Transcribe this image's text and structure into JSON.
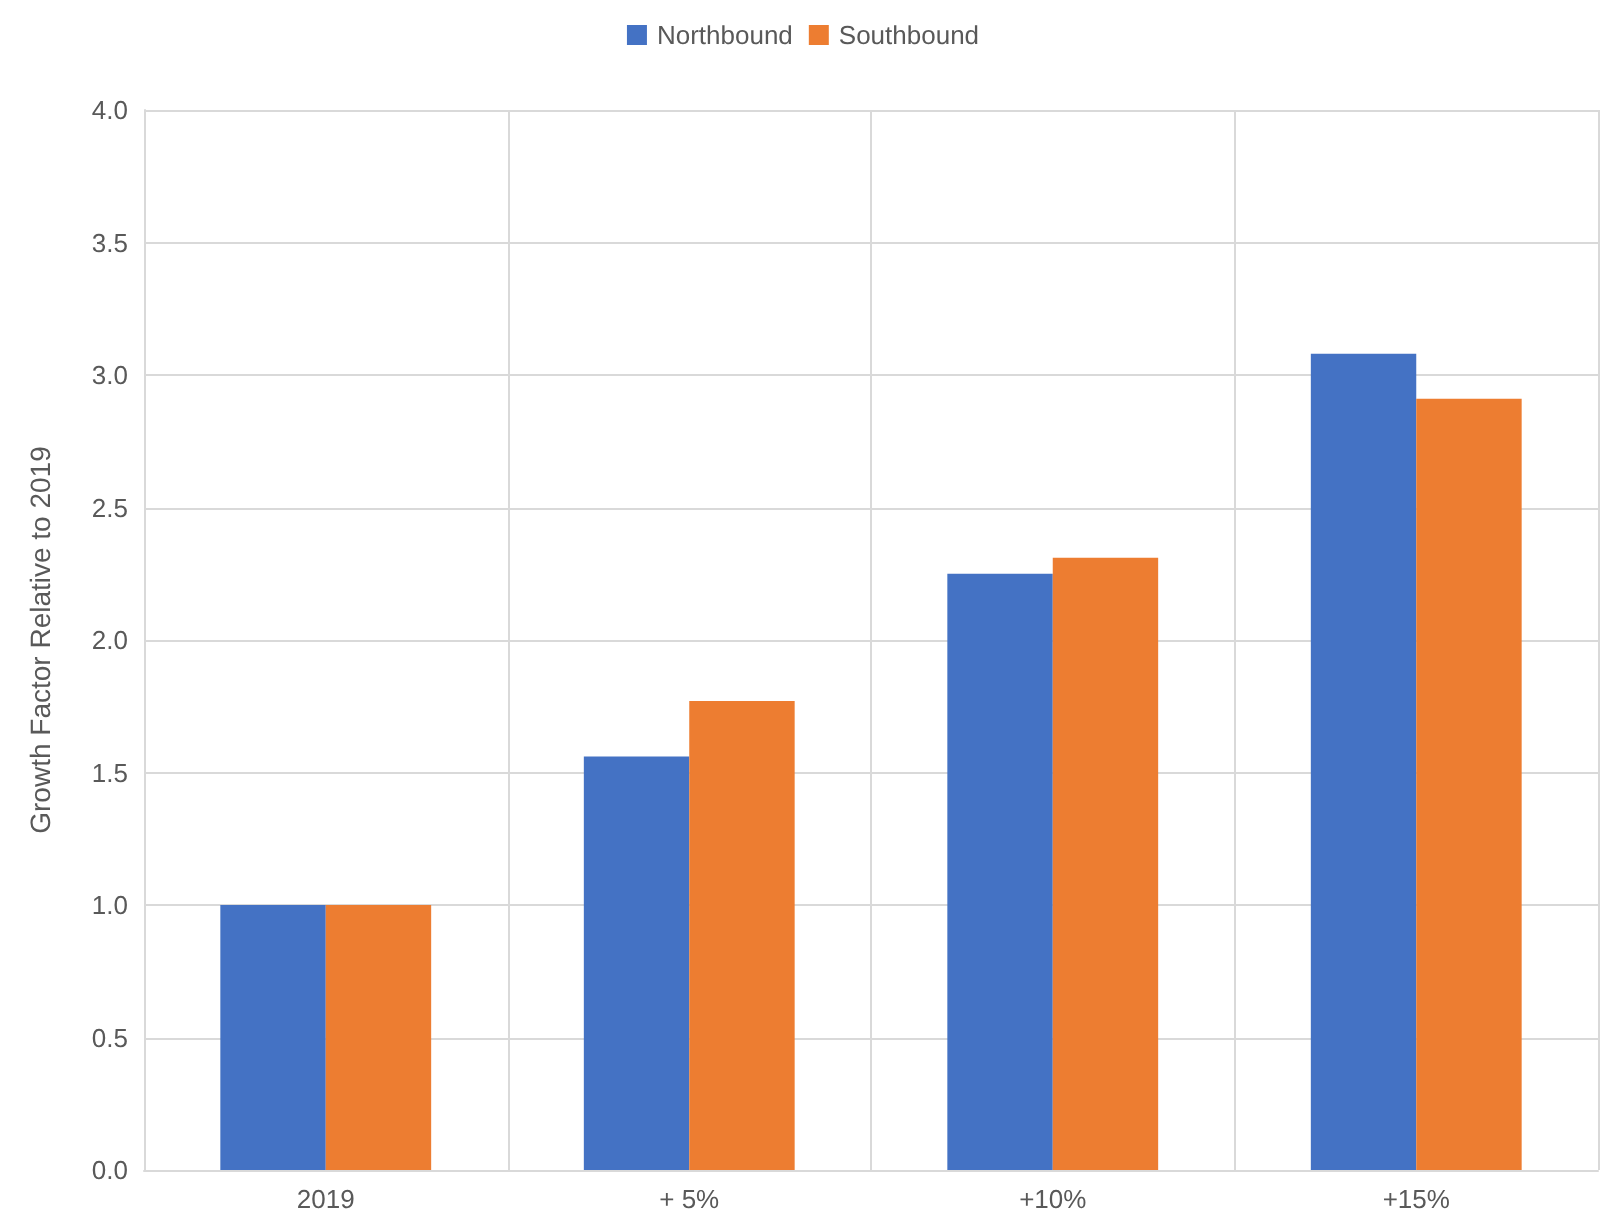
{
  "chart_data": {
    "type": "bar",
    "ylabel": "Growth Factor Relative to 2019",
    "categories": [
      "2019",
      "+ 5%",
      "+10%",
      "+15%"
    ],
    "series": [
      {
        "name": "Northbound",
        "color": "#4472c4",
        "values": [
          1.0,
          1.56,
          2.25,
          3.08
        ]
      },
      {
        "name": "Southbound",
        "color": "#ed7d31",
        "values": [
          1.0,
          1.77,
          2.31,
          2.91
        ]
      }
    ],
    "ylim": [
      0,
      4
    ],
    "yticks": [
      {
        "value": 0,
        "label": "0.0"
      },
      0.5,
      {
        "value": 1,
        "label": "1.0"
      },
      1.5,
      {
        "value": 2,
        "label": "2.0"
      },
      2.5,
      {
        "value": 3,
        "label": "3.0"
      },
      3.5,
      {
        "value": 4,
        "label": "4.0"
      }
    ],
    "grid": true,
    "legend": "top"
  }
}
